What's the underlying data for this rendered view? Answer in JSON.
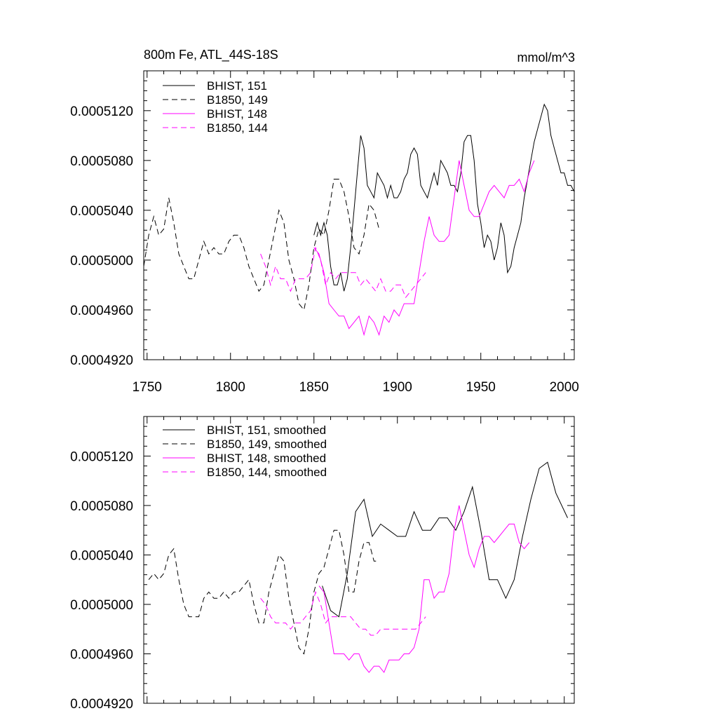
{
  "chart_data": [
    {
      "type": "line",
      "title": "800m Fe, ATL_44S-18S",
      "units": "mmol/m^3",
      "xlim": [
        1748,
        2006
      ],
      "ylim": [
        0.000492,
        0.0005152
      ],
      "x_ticks": [
        1750,
        1800,
        1850,
        1900,
        1950,
        2000
      ],
      "y_ticks": [
        "0.0004920",
        "0.0004960",
        "0.0005000",
        "0.0005040",
        "0.0005080",
        "0.0005120"
      ],
      "series": [
        {
          "name": "BHIST, 151",
          "color": "#000000",
          "dash": "solid",
          "x": [
            1850,
            1852,
            1854,
            1856,
            1858,
            1860,
            1862,
            1864,
            1866,
            1868,
            1870,
            1872,
            1874,
            1876,
            1878,
            1880,
            1882,
            1884,
            1886,
            1888,
            1890,
            1892,
            1894,
            1896,
            1898,
            1900,
            1902,
            1904,
            1906,
            1908,
            1910,
            1912,
            1914,
            1916,
            1918,
            1920,
            1922,
            1924,
            1926,
            1928,
            1930,
            1932,
            1934,
            1936,
            1938,
            1940,
            1942,
            1944,
            1946,
            1948,
            1950,
            1952,
            1954,
            1956,
            1958,
            1960,
            1962,
            1964,
            1966,
            1968,
            1970,
            1972,
            1974,
            1976,
            1978,
            1980,
            1982,
            1984,
            1986,
            1988,
            1990,
            1992,
            1994,
            1996,
            1998,
            2000,
            2002,
            2004,
            2006
          ],
          "values": [
            0.000502,
            0.000503,
            0.000502,
            0.000503,
            0.000502,
            0.0004995,
            0.000498,
            0.000498,
            0.000499,
            0.0004975,
            0.0004985,
            0.000501,
            0.000504,
            0.000507,
            0.00051,
            0.000509,
            0.000506,
            0.0005055,
            0.000505,
            0.000507,
            0.0005065,
            0.000506,
            0.000505,
            0.000506,
            0.000505,
            0.000505,
            0.0005055,
            0.0005065,
            0.000507,
            0.0005085,
            0.000509,
            0.0005085,
            0.000506,
            0.0005055,
            0.000505,
            0.000506,
            0.000507,
            0.000506,
            0.000508,
            0.0005075,
            0.000507,
            0.000506,
            0.000506,
            0.0005055,
            0.000507,
            0.0005095,
            0.00051,
            0.00051,
            0.000508,
            0.0005045,
            0.000503,
            0.000501,
            0.000502,
            0.0005015,
            0.0005,
            0.000501,
            0.000503,
            0.000502,
            0.000499,
            0.0004995,
            0.000501,
            0.000502,
            0.000503,
            0.000505,
            0.0005065,
            0.000508,
            0.0005095,
            0.0005105,
            0.0005115,
            0.0005125,
            0.000512,
            0.00051,
            0.000509,
            0.000508,
            0.000507,
            0.000507,
            0.000506,
            0.000506,
            0.0005055
          ]
        },
        {
          "name": "B1850, 149",
          "color": "#000000",
          "dash": "dashed",
          "x": [
            1748,
            1751,
            1754,
            1757,
            1760,
            1763,
            1766,
            1769,
            1772,
            1775,
            1778,
            1781,
            1784,
            1787,
            1790,
            1793,
            1796,
            1799,
            1802,
            1805,
            1808,
            1811,
            1814,
            1817,
            1820,
            1823,
            1826,
            1829,
            1832,
            1835,
            1838,
            1841,
            1844,
            1847,
            1850,
            1853,
            1856,
            1859,
            1862,
            1865,
            1868,
            1871,
            1874,
            1877,
            1880,
            1883,
            1886,
            1889
          ],
          "values": [
            0.0004995,
            0.000502,
            0.0005035,
            0.000502,
            0.0005025,
            0.000505,
            0.000503,
            0.0005005,
            0.0004995,
            0.0004985,
            0.0004985,
            0.0005,
            0.0005015,
            0.0005005,
            0.000501,
            0.0005005,
            0.0005005,
            0.0005015,
            0.000502,
            0.000502,
            0.000501,
            0.0004995,
            0.0004985,
            0.0004975,
            0.000498,
            0.0005,
            0.000502,
            0.000504,
            0.000503,
            0.0005,
            0.0004985,
            0.0004965,
            0.000496,
            0.000498,
            0.000501,
            0.0005025,
            0.000502,
            0.000504,
            0.0005065,
            0.0005065,
            0.0005055,
            0.0005035,
            0.000501,
            0.0005005,
            0.000502,
            0.0005045,
            0.000504,
            0.0005025
          ]
        },
        {
          "name": "BHIST, 148",
          "color": "#ff00ff",
          "dash": "solid",
          "x": [
            1850,
            1853,
            1856,
            1859,
            1862,
            1865,
            1868,
            1871,
            1874,
            1877,
            1880,
            1883,
            1886,
            1889,
            1892,
            1895,
            1898,
            1901,
            1904,
            1907,
            1910,
            1913,
            1916,
            1919,
            1922,
            1925,
            1928,
            1931,
            1934,
            1937,
            1940,
            1943,
            1946,
            1949,
            1952,
            1955,
            1958,
            1961,
            1964,
            1967,
            1970,
            1973,
            1976,
            1979,
            1982
          ],
          "values": [
            0.000501,
            0.0005005,
            0.000499,
            0.0004965,
            0.000496,
            0.0004955,
            0.0004955,
            0.0004945,
            0.000495,
            0.0004955,
            0.000494,
            0.0004955,
            0.000495,
            0.000494,
            0.0004955,
            0.000495,
            0.000496,
            0.0004955,
            0.0004965,
            0.0004965,
            0.0004965,
            0.000499,
            0.0005015,
            0.0005035,
            0.000502,
            0.0005015,
            0.0005015,
            0.000502,
            0.000505,
            0.000508,
            0.000506,
            0.000504,
            0.0005035,
            0.0005035,
            0.0005045,
            0.0005055,
            0.000506,
            0.0005055,
            0.000505,
            0.000506,
            0.000506,
            0.0005065,
            0.0005055,
            0.000507,
            0.000508
          ]
        },
        {
          "name": "B1850, 144",
          "color": "#ff00ff",
          "dash": "dashed",
          "x": [
            1818,
            1821,
            1824,
            1827,
            1830,
            1833,
            1836,
            1839,
            1842,
            1845,
            1848,
            1851,
            1854,
            1857,
            1860,
            1863,
            1866,
            1869,
            1872,
            1875,
            1878,
            1881,
            1884,
            1887,
            1890,
            1893,
            1896,
            1899,
            1902,
            1905,
            1908,
            1911,
            1914,
            1917
          ],
          "values": [
            0.0005005,
            0.0004995,
            0.000498,
            0.0004995,
            0.0004985,
            0.0004985,
            0.0004975,
            0.0004985,
            0.0004985,
            0.0004985,
            0.000499,
            0.000501,
            0.0005,
            0.000498,
            0.000499,
            0.0004985,
            0.000499,
            0.000499,
            0.000499,
            0.000499,
            0.000498,
            0.0004985,
            0.000498,
            0.0004975,
            0.0004985,
            0.0004975,
            0.0004975,
            0.000498,
            0.000498,
            0.000497,
            0.0004975,
            0.000498,
            0.0004985,
            0.000499
          ]
        }
      ]
    },
    {
      "type": "line",
      "xlim": [
        1748,
        2006
      ],
      "ylim": [
        0.000492,
        0.0005152
      ],
      "y_ticks": [
        "0.0004920",
        "0.0004960",
        "0.0005000",
        "0.0005040",
        "0.0005080",
        "0.0005120"
      ],
      "series": [
        {
          "name": "BHIST, 151, smoothed",
          "color": "#000000",
          "dash": "solid",
          "x": [
            1855,
            1860,
            1865,
            1870,
            1875,
            1880,
            1885,
            1890,
            1895,
            1900,
            1905,
            1910,
            1915,
            1920,
            1925,
            1930,
            1935,
            1940,
            1945,
            1950,
            1955,
            1960,
            1965,
            1970,
            1975,
            1980,
            1985,
            1990,
            1995,
            2002
          ],
          "values": [
            0.0005015,
            0.0004995,
            0.000499,
            0.0005025,
            0.0005075,
            0.0005085,
            0.0005055,
            0.0005065,
            0.000506,
            0.0005055,
            0.0005055,
            0.0005075,
            0.000506,
            0.000506,
            0.000507,
            0.000507,
            0.000506,
            0.0005075,
            0.0005095,
            0.000506,
            0.000502,
            0.000502,
            0.0005005,
            0.000502,
            0.0005055,
            0.0005085,
            0.000511,
            0.0005115,
            0.000509,
            0.000507
          ]
        },
        {
          "name": "B1850, 149, smoothed",
          "color": "#000000",
          "dash": "dashed",
          "x": [
            1751,
            1754,
            1757,
            1760,
            1763,
            1766,
            1769,
            1772,
            1775,
            1778,
            1781,
            1784,
            1787,
            1790,
            1793,
            1796,
            1799,
            1802,
            1805,
            1808,
            1811,
            1814,
            1817,
            1820,
            1823,
            1826,
            1829,
            1832,
            1835,
            1838,
            1841,
            1844,
            1847,
            1850,
            1853,
            1856,
            1859,
            1862,
            1865,
            1868,
            1871,
            1874,
            1877,
            1880,
            1883,
            1886,
            1889
          ],
          "values": [
            0.000502,
            0.0005025,
            0.000502,
            0.0005025,
            0.000504,
            0.0005045,
            0.000502,
            0.0005,
            0.000499,
            0.000499,
            0.000499,
            0.0005005,
            0.000501,
            0.0005005,
            0.0005005,
            0.000501,
            0.0005005,
            0.000501,
            0.000501,
            0.0005015,
            0.000502,
            0.0005,
            0.0004985,
            0.0004985,
            0.000501,
            0.0005025,
            0.000504,
            0.0005035,
            0.0005005,
            0.0004985,
            0.0004965,
            0.000496,
            0.000498,
            0.000501,
            0.0005025,
            0.000503,
            0.0005045,
            0.000506,
            0.000506,
            0.000504,
            0.000501,
            0.000501,
            0.0005035,
            0.000505,
            0.000505,
            0.0005035,
            0.0005035
          ]
        },
        {
          "name": "BHIST, 148, smoothed",
          "color": "#ff00ff",
          "dash": "solid",
          "x": [
            1853,
            1856,
            1859,
            1862,
            1865,
            1868,
            1871,
            1874,
            1877,
            1880,
            1883,
            1886,
            1889,
            1892,
            1895,
            1898,
            1901,
            1904,
            1907,
            1910,
            1913,
            1916,
            1919,
            1922,
            1925,
            1928,
            1931,
            1934,
            1937,
            1940,
            1943,
            1946,
            1949,
            1952,
            1955,
            1958,
            1961,
            1964,
            1967,
            1970,
            1973,
            1976,
            1979
          ],
          "values": [
            0.0005015,
            0.000501,
            0.0004985,
            0.000496,
            0.000496,
            0.000496,
            0.0004955,
            0.000496,
            0.000496,
            0.000495,
            0.0004945,
            0.000495,
            0.000495,
            0.0004945,
            0.0004955,
            0.0004955,
            0.0004955,
            0.000496,
            0.000496,
            0.0004965,
            0.000498,
            0.000502,
            0.000502,
            0.0005005,
            0.000501,
            0.000501,
            0.0005025,
            0.000506,
            0.000508,
            0.000506,
            0.000504,
            0.000503,
            0.0005045,
            0.0005055,
            0.0005055,
            0.000505,
            0.0005055,
            0.000506,
            0.0005065,
            0.0005065,
            0.000505,
            0.0005045,
            0.000505
          ]
        },
        {
          "name": "B1850, 144, smoothed",
          "color": "#ff00ff",
          "dash": "dashed",
          "x": [
            1818,
            1821,
            1824,
            1827,
            1830,
            1833,
            1836,
            1839,
            1842,
            1845,
            1848,
            1851,
            1854,
            1857,
            1860,
            1863,
            1866,
            1869,
            1872,
            1875,
            1878,
            1881,
            1884,
            1887,
            1890,
            1893,
            1896,
            1899,
            1902,
            1905,
            1908,
            1911,
            1914,
            1917
          ],
          "values": [
            0.0005005,
            0.0005,
            0.000499,
            0.0004985,
            0.0004985,
            0.0004985,
            0.000498,
            0.0004985,
            0.0004985,
            0.000499,
            0.0004995,
            0.000501,
            0.0005,
            0.0004985,
            0.000499,
            0.000499,
            0.000499,
            0.000499,
            0.000499,
            0.0004985,
            0.000498,
            0.000498,
            0.0004975,
            0.0004975,
            0.000498,
            0.000498,
            0.000498,
            0.000498,
            0.000498,
            0.000498,
            0.000498,
            0.000498,
            0.0004985,
            0.000499
          ]
        }
      ]
    }
  ]
}
